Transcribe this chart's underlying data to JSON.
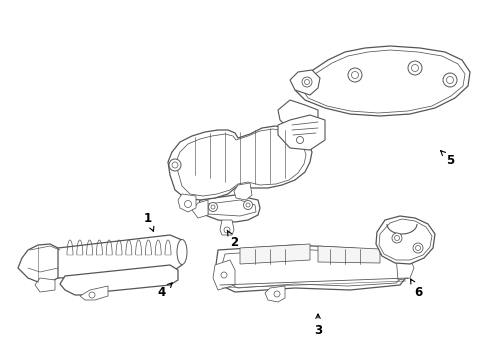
{
  "background_color": "#ffffff",
  "line_color": "#555555",
  "label_color": "#000000",
  "label_fontsize": 8.5,
  "arrow_color": "#000000",
  "fig_width": 4.9,
  "fig_height": 3.6,
  "dpi": 100
}
